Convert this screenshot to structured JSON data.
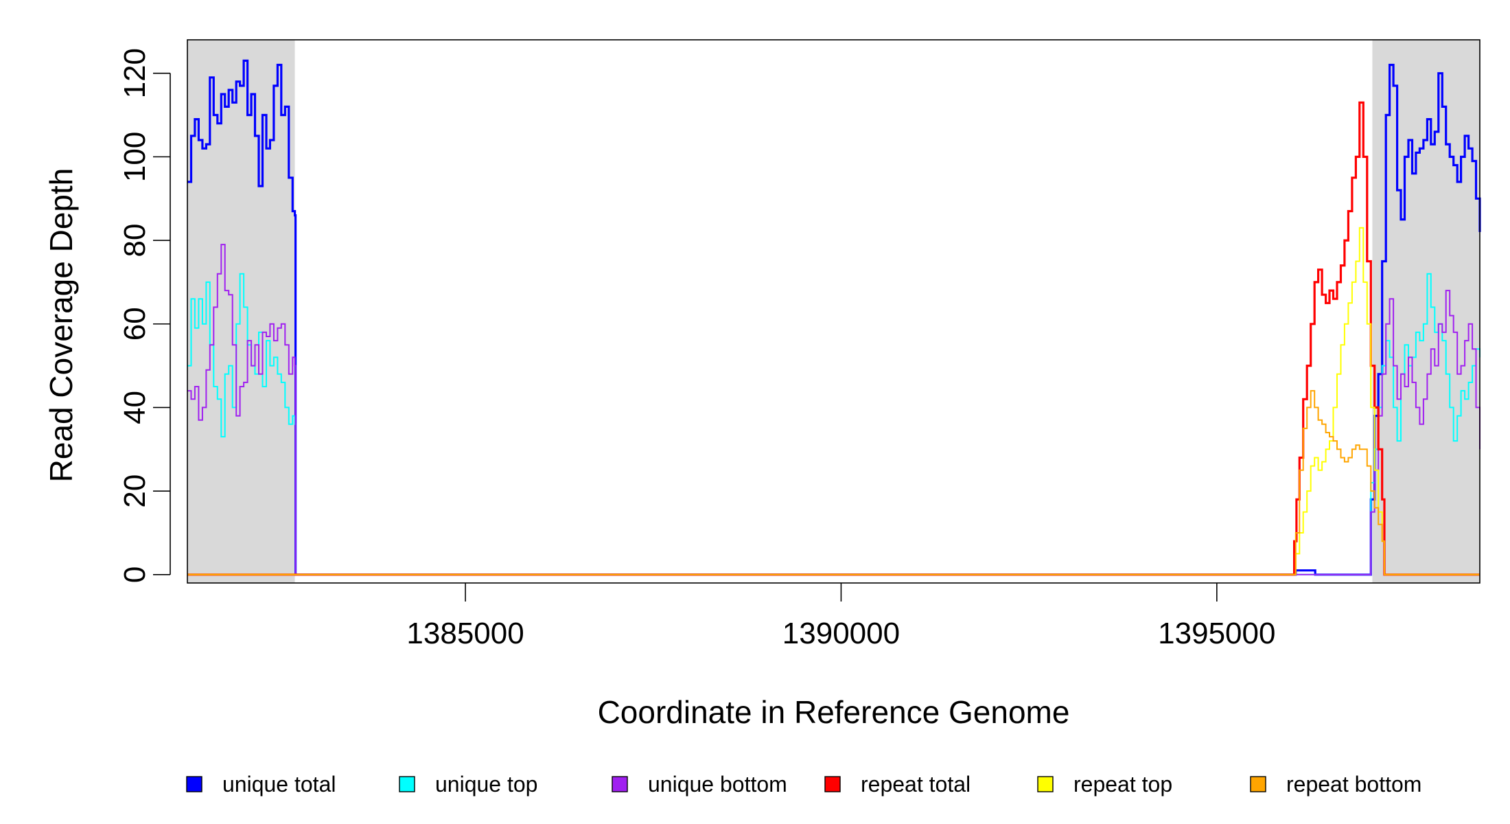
{
  "chart_data": {
    "type": "line",
    "title": "",
    "xlabel": "Coordinate in Reference Genome",
    "ylabel": "Read Coverage Depth",
    "xlim": [
      1381300,
      1398500
    ],
    "ylim": [
      -2,
      128
    ],
    "x_ticks": [
      1385000,
      1390000,
      1395000
    ],
    "y_ticks": [
      0,
      20,
      40,
      60,
      80,
      100,
      120
    ],
    "grid": false,
    "shaded_regions": [
      {
        "x_start": 1381300,
        "x_end": 1382730,
        "color": "#d9d9d9"
      },
      {
        "x_start": 1397070,
        "x_end": 1398500,
        "color": "#d9d9d9"
      }
    ],
    "legend_position": "bottom",
    "series": [
      {
        "name": "unique total",
        "color": "#0000ff",
        "line_width": 3.2,
        "x": [
          1381300,
          1381350,
          1381400,
          1381450,
          1381500,
          1381550,
          1381600,
          1381650,
          1381700,
          1381750,
          1381800,
          1381850,
          1381900,
          1381950,
          1382000,
          1382050,
          1382100,
          1382150,
          1382200,
          1382250,
          1382300,
          1382350,
          1382400,
          1382450,
          1382500,
          1382550,
          1382600,
          1382650,
          1382700,
          1382730,
          1382740,
          1396000,
          1396050,
          1396300,
          1396310,
          1397000,
          1397050,
          1397100,
          1397150,
          1397200,
          1397250,
          1397300,
          1397350,
          1397400,
          1397450,
          1397500,
          1397550,
          1397600,
          1397650,
          1397700,
          1397750,
          1397800,
          1397850,
          1397900,
          1397950,
          1398000,
          1398050,
          1398100,
          1398150,
          1398200,
          1398250,
          1398300,
          1398350,
          1398400,
          1398450,
          1398500
        ],
        "y": [
          94,
          105,
          109,
          104,
          102,
          103,
          119,
          110,
          108,
          115,
          112,
          116,
          113,
          118,
          117,
          123,
          110,
          115,
          105,
          93,
          110,
          102,
          104,
          117,
          122,
          110,
          112,
          95,
          87,
          86,
          0,
          0,
          1,
          1,
          0,
          0,
          18,
          38,
          48,
          75,
          110,
          122,
          117,
          92,
          85,
          100,
          104,
          96,
          101,
          102,
          104,
          109,
          103,
          106,
          120,
          112,
          103,
          100,
          98,
          94,
          100,
          105,
          102,
          99,
          90,
          82
        ]
      },
      {
        "name": "unique top",
        "color": "#00ffff",
        "line_width": 2,
        "x": [
          1381300,
          1381350,
          1381400,
          1381450,
          1381500,
          1381550,
          1381600,
          1381650,
          1381700,
          1381750,
          1381800,
          1381850,
          1381900,
          1381950,
          1382000,
          1382050,
          1382100,
          1382150,
          1382200,
          1382250,
          1382300,
          1382350,
          1382400,
          1382450,
          1382500,
          1382550,
          1382600,
          1382650,
          1382700,
          1382730,
          1382740,
          1397000,
          1397050,
          1397100,
          1397150,
          1397200,
          1397250,
          1397300,
          1397350,
          1397400,
          1397450,
          1397500,
          1397550,
          1397600,
          1397650,
          1397700,
          1397750,
          1397800,
          1397850,
          1397900,
          1397950,
          1398000,
          1398050,
          1398100,
          1398150,
          1398200,
          1398250,
          1398300,
          1398350,
          1398400,
          1398450,
          1398500
        ],
        "y": [
          50,
          66,
          59,
          66,
          60,
          70,
          55,
          45,
          42,
          33,
          48,
          50,
          40,
          60,
          72,
          64,
          55,
          50,
          48,
          58,
          45,
          56,
          50,
          52,
          48,
          46,
          40,
          36,
          38,
          36,
          0,
          0,
          22,
          30,
          40,
          50,
          56,
          52,
          40,
          32,
          48,
          55,
          50,
          52,
          58,
          56,
          60,
          72,
          64,
          58,
          60,
          56,
          48,
          40,
          32,
          38,
          44,
          42,
          46,
          50,
          54,
          52
        ]
      },
      {
        "name": "unique bottom",
        "color": "#a020f0",
        "line_width": 2,
        "x": [
          1381300,
          1381350,
          1381400,
          1381450,
          1381500,
          1381550,
          1381600,
          1381650,
          1381700,
          1381750,
          1381800,
          1381850,
          1381900,
          1381950,
          1382000,
          1382050,
          1382100,
          1382150,
          1382200,
          1382250,
          1382300,
          1382350,
          1382400,
          1382450,
          1382500,
          1382550,
          1382600,
          1382650,
          1382700,
          1382730,
          1382740,
          1397000,
          1397050,
          1397100,
          1397150,
          1397200,
          1397250,
          1397300,
          1397350,
          1397400,
          1397450,
          1397500,
          1397550,
          1397600,
          1397650,
          1397700,
          1397750,
          1397800,
          1397850,
          1397900,
          1397950,
          1398000,
          1398050,
          1398100,
          1398150,
          1398200,
          1398250,
          1398300,
          1398350,
          1398400,
          1398450,
          1398500
        ],
        "y": [
          44,
          42,
          45,
          37,
          40,
          49,
          55,
          64,
          72,
          79,
          68,
          67,
          55,
          38,
          45,
          46,
          56,
          50,
          55,
          48,
          58,
          57,
          60,
          56,
          59,
          60,
          55,
          48,
          52,
          50,
          0,
          0,
          15,
          25,
          38,
          48,
          60,
          66,
          50,
          42,
          48,
          45,
          52,
          46,
          40,
          36,
          42,
          48,
          54,
          50,
          60,
          58,
          68,
          62,
          58,
          48,
          50,
          56,
          60,
          54,
          40,
          30
        ]
      },
      {
        "name": "repeat total",
        "color": "#ff0000",
        "line_width": 3.2,
        "x": [
          1381300,
          1382740,
          1396000,
          1396030,
          1396060,
          1396100,
          1396150,
          1396200,
          1396250,
          1396300,
          1396350,
          1396400,
          1396450,
          1396500,
          1396550,
          1396600,
          1396650,
          1396700,
          1396750,
          1396800,
          1396850,
          1396900,
          1396950,
          1397000,
          1397050,
          1397100,
          1397150,
          1397200,
          1397230,
          1397250,
          1398500
        ],
        "y": [
          0,
          0,
          0,
          8,
          18,
          28,
          42,
          50,
          60,
          70,
          73,
          67,
          65,
          68,
          66,
          70,
          74,
          80,
          87,
          95,
          100,
          113,
          100,
          75,
          50,
          40,
          30,
          18,
          0,
          0,
          0
        ]
      },
      {
        "name": "repeat top",
        "color": "#ffff00",
        "line_width": 2,
        "x": [
          1381300,
          1382740,
          1396000,
          1396050,
          1396100,
          1396150,
          1396200,
          1396250,
          1396300,
          1396350,
          1396400,
          1396450,
          1396500,
          1396550,
          1396600,
          1396650,
          1396700,
          1396750,
          1396800,
          1396850,
          1396900,
          1396950,
          1397000,
          1397050,
          1397100,
          1397150,
          1397200,
          1397230,
          1397250,
          1398500
        ],
        "y": [
          0,
          0,
          0,
          5,
          10,
          15,
          20,
          26,
          28,
          25,
          27,
          30,
          32,
          40,
          48,
          55,
          60,
          65,
          70,
          75,
          83,
          70,
          60,
          40,
          25,
          15,
          8,
          0,
          0,
          0
        ]
      },
      {
        "name": "repeat bottom",
        "color": "#ffa500",
        "line_width": 2,
        "x": [
          1381300,
          1382740,
          1396000,
          1396050,
          1396100,
          1396150,
          1396200,
          1396250,
          1396300,
          1396350,
          1396400,
          1396450,
          1396500,
          1396550,
          1396600,
          1396650,
          1396700,
          1396750,
          1396800,
          1396850,
          1396900,
          1396950,
          1397000,
          1397050,
          1397100,
          1397150,
          1397200,
          1397230,
          1397250,
          1398500
        ],
        "y": [
          0,
          0,
          0,
          10,
          25,
          35,
          40,
          44,
          40,
          37,
          36,
          34,
          33,
          32,
          30,
          28,
          27,
          28,
          30,
          31,
          30,
          30,
          26,
          20,
          16,
          12,
          8,
          0,
          0,
          0
        ]
      }
    ]
  }
}
